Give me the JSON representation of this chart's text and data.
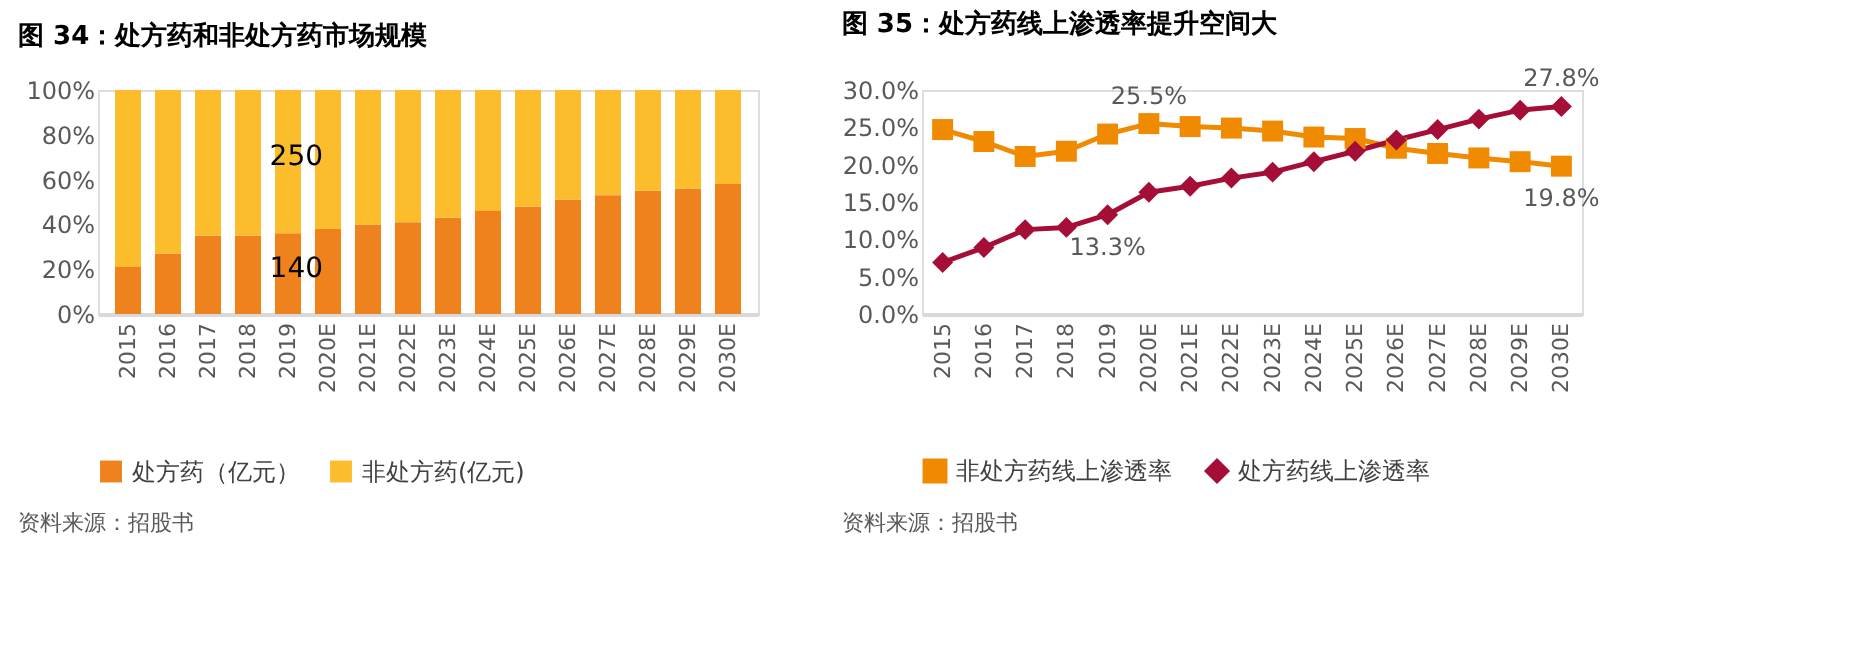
{
  "chart_data": [
    {
      "type": "bar",
      "title": "图 34：处方药和非处方药市场规模",
      "stacked": true,
      "categories": [
        "2015",
        "2016",
        "2017",
        "2018",
        "2019",
        "2020E",
        "2021E",
        "2022E",
        "2023E",
        "2024E",
        "2025E",
        "2026E",
        "2027E",
        "2028E",
        "2029E",
        "2030E"
      ],
      "series": [
        {
          "name": "处方药（亿元）",
          "color": "#f0821e",
          "values": [
            21,
            27,
            35,
            35,
            36,
            38,
            40,
            41,
            43,
            46,
            48,
            51,
            53,
            55,
            56,
            58
          ]
        },
        {
          "name": "非处方药(亿元)",
          "color": "#fbbd2c",
          "values": [
            79,
            73,
            65,
            65,
            64,
            62,
            60,
            59,
            57,
            54,
            52,
            49,
            47,
            45,
            44,
            42
          ]
        }
      ],
      "ylim": [
        0,
        100
      ],
      "yticks": [
        {
          "value": 0,
          "label": "0%"
        },
        {
          "value": 20,
          "label": "20%"
        },
        {
          "value": 40,
          "label": "40%"
        },
        {
          "value": 60,
          "label": "60%"
        },
        {
          "value": 80,
          "label": "80%"
        },
        {
          "value": 100,
          "label": "100%"
        }
      ],
      "grid": false,
      "legend": "bottom",
      "annotations": [
        "250",
        "140",
        "资料来源：招股书"
      ]
    },
    {
      "type": "line",
      "title": "图 35：处方药线上渗透率提升空间大",
      "categories": [
        "2015",
        "2016",
        "2017",
        "2018",
        "2019",
        "2020E",
        "2021E",
        "2022E",
        "2023E",
        "2024E",
        "2025E",
        "2026E",
        "2027E",
        "2028E",
        "2029E",
        "2030E"
      ],
      "series": [
        {
          "name": "非处方药线上渗透率",
          "color": "#f08a00",
          "marker": "square",
          "values": [
            24.7,
            23.1,
            21.1,
            21.8,
            24.1,
            25.5,
            25.1,
            24.9,
            24.5,
            23.7,
            23.5,
            22.2,
            21.5,
            20.9,
            20.4,
            19.8
          ],
          "value_labels": [
            null,
            null,
            null,
            null,
            null,
            "25.5%",
            null,
            null,
            null,
            null,
            null,
            null,
            null,
            null,
            null,
            "19.8%"
          ]
        },
        {
          "name": "处方药线上渗透率",
          "color": "#a50f37",
          "marker": "diamond",
          "values": [
            6.9,
            8.9,
            11.3,
            11.6,
            13.3,
            16.3,
            17.1,
            18.2,
            19.0,
            20.4,
            21.8,
            23.3,
            24.7,
            26.1,
            27.3,
            27.8
          ],
          "value_labels": [
            null,
            null,
            null,
            null,
            "13.3%",
            null,
            null,
            null,
            null,
            null,
            null,
            null,
            null,
            null,
            null,
            "27.8%"
          ]
        }
      ],
      "ylim": [
        0,
        30
      ],
      "yticks": [
        {
          "value": 0,
          "label": "0.0%"
        },
        {
          "value": 5,
          "label": "5.0%"
        },
        {
          "value": 10,
          "label": "10.0%"
        },
        {
          "value": 15,
          "label": "15.0%"
        },
        {
          "value": 20,
          "label": "20.0%"
        },
        {
          "value": 25,
          "label": "25.0%"
        },
        {
          "value": 30,
          "label": "30.0%"
        }
      ],
      "grid": false,
      "legend": "bottom",
      "annotations": [
        "资料来源：招股书"
      ]
    }
  ]
}
